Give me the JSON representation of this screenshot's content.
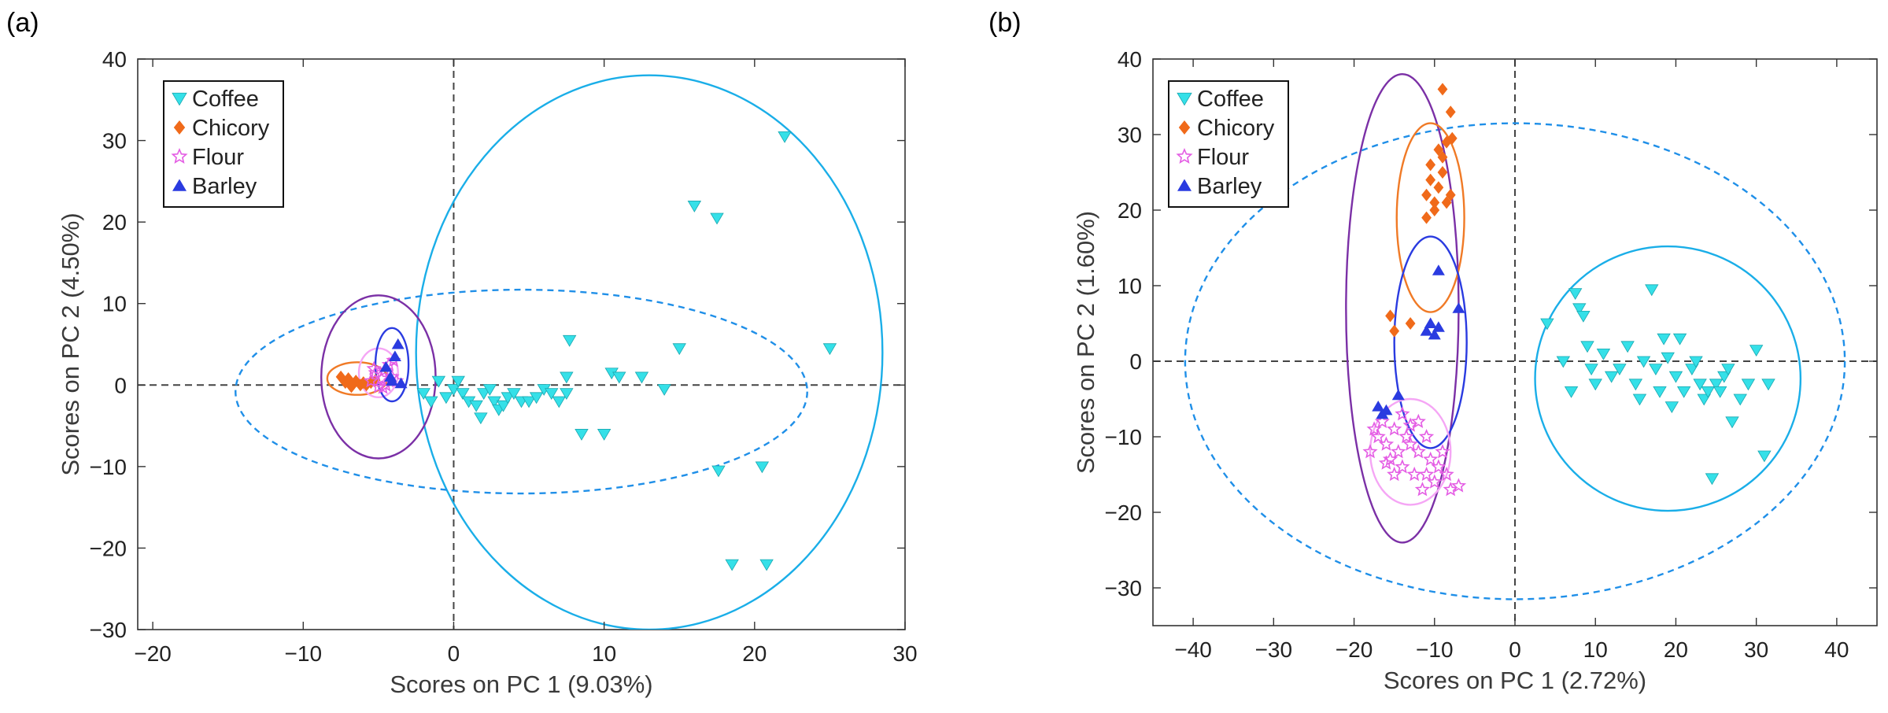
{
  "chart_data": [
    {
      "panel": "(a)",
      "type": "scatter",
      "title": "",
      "xlabel": "Scores on PC 1 (9.03%)",
      "ylabel": "Scores on PC 2 (4.50%)",
      "xlim": [
        -21,
        30
      ],
      "ylim": [
        -30,
        40
      ],
      "xticks": [
        -20,
        -10,
        0,
        10,
        20,
        30
      ],
      "yticks": [
        -30,
        -20,
        -10,
        0,
        10,
        20,
        30,
        40
      ],
      "grid": false,
      "zero_lines": true,
      "legend_position": "top-left",
      "series": [
        {
          "name": "Coffee",
          "marker": "triangle-down",
          "color": "#35e0e8",
          "points": [
            [
              -2,
              -1
            ],
            [
              -1.5,
              -2
            ],
            [
              -1,
              0.5
            ],
            [
              -0.5,
              -1.5
            ],
            [
              0,
              -0.5
            ],
            [
              0.3,
              0.5
            ],
            [
              0.6,
              -1
            ],
            [
              1,
              -2
            ],
            [
              1.5,
              -2.5
            ],
            [
              1.8,
              -4
            ],
            [
              2,
              -1
            ],
            [
              2.4,
              -0.5
            ],
            [
              2.7,
              -2
            ],
            [
              3,
              -3
            ],
            [
              3.3,
              -2.5
            ],
            [
              3.6,
              -1.5
            ],
            [
              4,
              -1
            ],
            [
              4.5,
              -2
            ],
            [
              5,
              -2
            ],
            [
              5.5,
              -1.5
            ],
            [
              6,
              -0.5
            ],
            [
              6.5,
              -1
            ],
            [
              7,
              -2
            ],
            [
              7.5,
              -1
            ],
            [
              7.5,
              1
            ],
            [
              7.7,
              5.5
            ],
            [
              8.5,
              -6
            ],
            [
              10,
              -6
            ],
            [
              10.5,
              1.5
            ],
            [
              11,
              1
            ],
            [
              12.5,
              1
            ],
            [
              14,
              -0.5
            ],
            [
              15,
              4.5
            ],
            [
              16,
              22
            ],
            [
              17.5,
              20.5
            ],
            [
              17.6,
              -10.5
            ],
            [
              18.5,
              -22
            ],
            [
              20.5,
              -10
            ],
            [
              20.8,
              -22
            ],
            [
              22,
              30.5
            ],
            [
              25,
              4.5
            ]
          ]
        },
        {
          "name": "Chicory",
          "marker": "diamond",
          "color": "#f06a1a",
          "points": [
            [
              -7.5,
              1
            ],
            [
              -7.2,
              0.3
            ],
            [
              -7,
              0.8
            ],
            [
              -6.8,
              -0.2
            ],
            [
              -6.5,
              0.5
            ],
            [
              -6.2,
              0
            ],
            [
              -6,
              0.3
            ],
            [
              -5.8,
              0
            ],
            [
              -5.5,
              0.3
            ],
            [
              -5.2,
              0.6
            ]
          ]
        },
        {
          "name": "Flour",
          "marker": "star",
          "color": "#e45de4",
          "points": [
            [
              -5.5,
              0.5
            ],
            [
              -5.2,
              1.5
            ],
            [
              -5,
              -0.2
            ],
            [
              -4.8,
              0.8
            ],
            [
              -4.6,
              1.8
            ],
            [
              -4.5,
              0
            ],
            [
              -4.3,
              2.5
            ],
            [
              -4.1,
              1
            ],
            [
              -4,
              3
            ],
            [
              -3.8,
              0.5
            ],
            [
              -5.3,
              2
            ],
            [
              -4.7,
              -0.3
            ]
          ]
        },
        {
          "name": "Barley",
          "marker": "triangle-up",
          "color": "#2a3be0",
          "points": [
            [
              -4.2,
              1
            ],
            [
              -3.9,
              3.5
            ],
            [
              -4.5,
              2.2
            ],
            [
              -3.7,
              5
            ],
            [
              -4.1,
              0.5
            ],
            [
              -3.5,
              0.2
            ]
          ]
        }
      ],
      "ellipses": [
        {
          "cx": 13,
          "cy": 4,
          "rx": 15.5,
          "ry": 34,
          "color": "#1aaee8",
          "style": "solid"
        },
        {
          "cx": 4.5,
          "cy": -0.8,
          "rx": 19,
          "ry": 12.5,
          "color": "#1f8fe8",
          "style": "dashed"
        },
        {
          "cx": -5,
          "cy": 1,
          "rx": 3.8,
          "ry": 10,
          "color": "#7b30a6",
          "style": "solid"
        },
        {
          "cx": -6.4,
          "cy": 0.8,
          "rx": 2,
          "ry": 2,
          "color": "#f07a26",
          "style": "solid"
        },
        {
          "cx": -5,
          "cy": 1.5,
          "rx": 1.3,
          "ry": 3,
          "color": "#f5a6f5",
          "style": "solid"
        },
        {
          "cx": -4.1,
          "cy": 2.5,
          "rx": 1.1,
          "ry": 4.5,
          "color": "#2a3be0",
          "style": "solid"
        }
      ]
    },
    {
      "panel": "(b)",
      "type": "scatter",
      "title": "",
      "xlabel": "Scores on PC 1 (2.72%)",
      "ylabel": "Scores on PC 2 (1.60%)",
      "xlim": [
        -45,
        45
      ],
      "ylim": [
        -35,
        40
      ],
      "xticks": [
        -40,
        -30,
        -20,
        -10,
        0,
        10,
        20,
        30,
        40
      ],
      "yticks": [
        -30,
        -20,
        -10,
        0,
        10,
        20,
        30,
        40
      ],
      "grid": false,
      "zero_lines": true,
      "legend_position": "top-left",
      "series": [
        {
          "name": "Coffee",
          "marker": "triangle-down",
          "color": "#35e0e8",
          "points": [
            [
              4,
              5
            ],
            [
              6,
              0
            ],
            [
              7,
              -4
            ],
            [
              7.5,
              9
            ],
            [
              8,
              7
            ],
            [
              8.5,
              6
            ],
            [
              9,
              2
            ],
            [
              9.5,
              -1
            ],
            [
              10,
              -3
            ],
            [
              11,
              1
            ],
            [
              12,
              -2
            ],
            [
              13,
              -1
            ],
            [
              14,
              2
            ],
            [
              15,
              -3
            ],
            [
              15.5,
              -5
            ],
            [
              16,
              0
            ],
            [
              17,
              9.5
            ],
            [
              17.5,
              -1
            ],
            [
              18,
              -4
            ],
            [
              18.5,
              3
            ],
            [
              19,
              0.5
            ],
            [
              19.5,
              -6
            ],
            [
              20,
              -2
            ],
            [
              20.5,
              3
            ],
            [
              21,
              -4
            ],
            [
              22,
              -1
            ],
            [
              22.5,
              0
            ],
            [
              23,
              -3
            ],
            [
              23.5,
              -5
            ],
            [
              24,
              -4
            ],
            [
              24.5,
              -15.5
            ],
            [
              25,
              -3
            ],
            [
              25.5,
              -4
            ],
            [
              26,
              -2
            ],
            [
              26.5,
              -1
            ],
            [
              27,
              -8
            ],
            [
              28,
              -5
            ],
            [
              29,
              -3
            ],
            [
              30,
              1.5
            ],
            [
              31,
              -12.5
            ],
            [
              31.5,
              -3
            ]
          ]
        },
        {
          "name": "Chicory",
          "marker": "diamond",
          "color": "#f06a1a",
          "points": [
            [
              -15.5,
              6
            ],
            [
              -15,
              4
            ],
            [
              -13,
              5
            ],
            [
              -11,
              19
            ],
            [
              -11,
              22
            ],
            [
              -10.5,
              24
            ],
            [
              -10.5,
              26
            ],
            [
              -10,
              21
            ],
            [
              -10,
              20
            ],
            [
              -9.5,
              23
            ],
            [
              -9.5,
              28
            ],
            [
              -9,
              25
            ],
            [
              -9,
              36
            ],
            [
              -8.5,
              21
            ],
            [
              -8.5,
              29
            ],
            [
              -8,
              33
            ],
            [
              -8,
              22
            ],
            [
              -7.8,
              29.5
            ],
            [
              -9,
              27
            ]
          ]
        },
        {
          "name": "Flour",
          "marker": "star",
          "color": "#e45de4",
          "points": [
            [
              -18,
              -12
            ],
            [
              -17,
              -10
            ],
            [
              -16.5,
              -8
            ],
            [
              -16,
              -11
            ],
            [
              -15.5,
              -13
            ],
            [
              -15,
              -9
            ],
            [
              -14.5,
              -12
            ],
            [
              -14,
              -7
            ],
            [
              -14,
              -14
            ],
            [
              -13.5,
              -10
            ],
            [
              -13,
              -11
            ],
            [
              -12.5,
              -15
            ],
            [
              -12,
              -8
            ],
            [
              -12,
              -12
            ],
            [
              -11.5,
              -17
            ],
            [
              -11,
              -10
            ],
            [
              -10.5,
              -13
            ],
            [
              -10,
              -16
            ],
            [
              -9.5,
              -14
            ],
            [
              -9,
              -12
            ],
            [
              -8.5,
              -15
            ],
            [
              -8,
              -17
            ],
            [
              -7,
              -16.5
            ],
            [
              -17.5,
              -9
            ],
            [
              -16,
              -13.5
            ],
            [
              -13,
              -8.5
            ],
            [
              -15,
              -15
            ],
            [
              -11,
              -15
            ]
          ]
        },
        {
          "name": "Barley",
          "marker": "triangle-up",
          "color": "#2a3be0",
          "points": [
            [
              -17,
              -6
            ],
            [
              -16.5,
              -7
            ],
            [
              -16,
              -6.5
            ],
            [
              -14.5,
              -4.5
            ],
            [
              -11,
              4
            ],
            [
              -10.5,
              5
            ],
            [
              -10,
              3.5
            ],
            [
              -9.5,
              4.5
            ],
            [
              -9.5,
              12
            ],
            [
              -7,
              7
            ]
          ]
        }
      ],
      "ellipses": [
        {
          "cx": 0,
          "cy": 0,
          "rx": 41,
          "ry": 31.5,
          "color": "#1f8fe8",
          "style": "dashed"
        },
        {
          "cx": 19,
          "cy": -2.3,
          "rx": 16.5,
          "ry": 17.5,
          "color": "#1aaee8",
          "style": "solid"
        },
        {
          "cx": -14,
          "cy": 7,
          "rx": 7,
          "ry": 31,
          "color": "#7b30a6",
          "style": "solid"
        },
        {
          "cx": -10.5,
          "cy": 19,
          "rx": 4.2,
          "ry": 12.5,
          "color": "#f07a26",
          "style": "solid"
        },
        {
          "cx": -10.5,
          "cy": 2.5,
          "rx": 4.5,
          "ry": 14,
          "color": "#2a3be0",
          "style": "solid"
        },
        {
          "cx": -13,
          "cy": -12,
          "rx": 5,
          "ry": 7,
          "color": "#f5a6f5",
          "style": "solid"
        }
      ]
    }
  ]
}
